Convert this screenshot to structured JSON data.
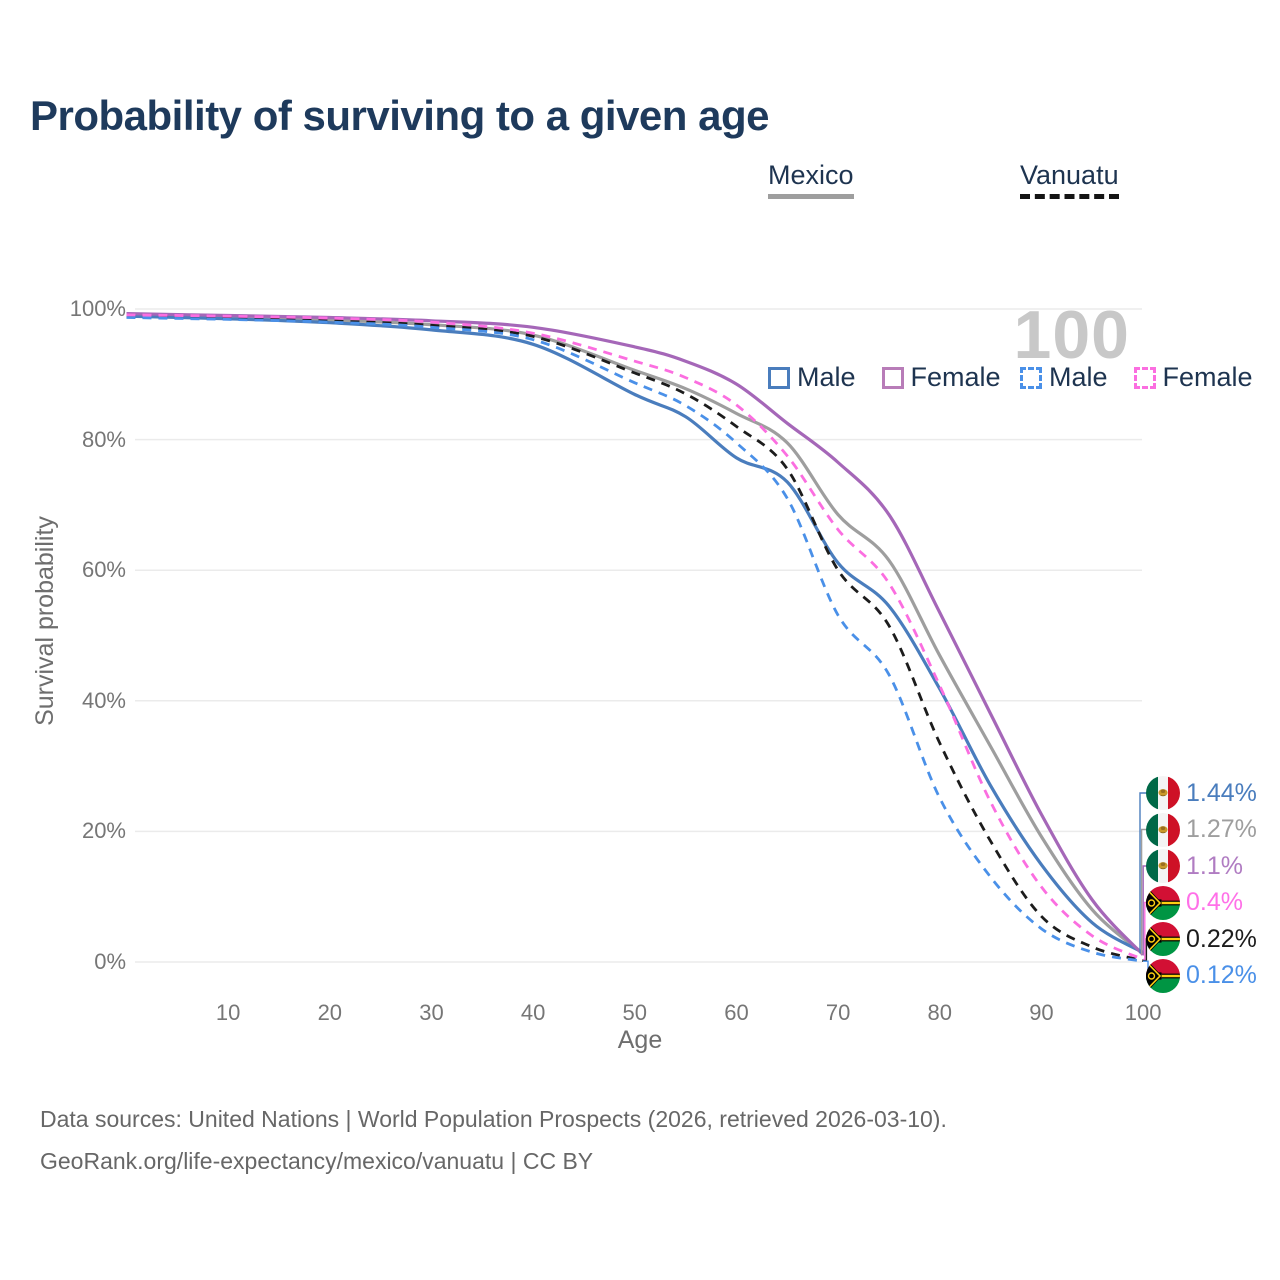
{
  "title": "Probability of surviving to a given age",
  "watermark": "100",
  "legend": {
    "groups": [
      {
        "name": "Mexico",
        "line_style": "solid",
        "underline_color": "#9e9e9e",
        "items": [
          {
            "label": "Male",
            "color": "#4a7dbd"
          },
          {
            "label": "Female",
            "color": "#b87cb8"
          }
        ]
      },
      {
        "name": "Vanuatu",
        "line_style": "dashed",
        "underline_color": "#141414",
        "items": [
          {
            "label": "Male",
            "color": "#4a90e8"
          },
          {
            "label": "Female",
            "color": "#fb6ee0"
          }
        ]
      }
    ]
  },
  "chart_data": {
    "type": "line",
    "title": "Probability of surviving to a given age",
    "xlabel": "Age",
    "ylabel": "Survival probability",
    "xlim": [
      0,
      100
    ],
    "ylim": [
      0,
      100
    ],
    "grid": "horizontal-only",
    "x_ticks": [
      10,
      20,
      30,
      40,
      50,
      60,
      70,
      80,
      90,
      100
    ],
    "y_ticks": [
      0,
      20,
      40,
      60,
      80,
      100
    ],
    "y_tick_suffix": "%",
    "x": [
      0,
      10,
      20,
      30,
      40,
      50,
      55,
      60,
      65,
      70,
      75,
      80,
      85,
      90,
      95,
      100
    ],
    "series": [
      {
        "name": "Mexico Both sexes",
        "color": "#9e9e9e",
        "dash": "solid",
        "values": [
          99.1,
          98.8,
          98.3,
          97.6,
          96.0,
          90.6,
          87.8,
          84.0,
          79.5,
          68.5,
          61.5,
          46.9,
          33.0,
          19.2,
          8.0,
          1.27
        ]
      },
      {
        "name": "Mexico Male",
        "color": "#4a7dbd",
        "dash": "solid",
        "values": [
          98.9,
          98.5,
          97.9,
          96.8,
          94.6,
          86.9,
          83.5,
          77.2,
          73.5,
          61.1,
          54.5,
          41.8,
          27.0,
          14.9,
          6.0,
          1.44
        ]
      },
      {
        "name": "Mexico Female",
        "color": "#a567b8",
        "dash": "solid",
        "values": [
          99.3,
          99.0,
          98.7,
          98.2,
          97.2,
          94.2,
          92.0,
          88.5,
          82.5,
          76.5,
          68.5,
          53.5,
          38.0,
          22.6,
          9.5,
          1.1
        ]
      },
      {
        "name": "Vanuatu Both sexes",
        "color": "#1c1c1c",
        "dash": "dashed",
        "values": [
          98.9,
          98.6,
          98.2,
          97.5,
          95.8,
          90.2,
          87.0,
          82.0,
          75.5,
          60.0,
          51.5,
          33.5,
          18.5,
          7.0,
          2.3,
          0.22
        ]
      },
      {
        "name": "Vanuatu Male",
        "color": "#4a90e8",
        "dash": "dashed",
        "values": [
          98.7,
          98.4,
          98.0,
          97.2,
          95.3,
          88.7,
          85.2,
          79.5,
          71.0,
          53.1,
          44.0,
          25.1,
          13.0,
          5.1,
          1.5,
          0.12
        ]
      },
      {
        "name": "Vanuatu Female",
        "color": "#fb6ee0",
        "dash": "dashed",
        "values": [
          99.1,
          98.9,
          98.6,
          98.0,
          96.3,
          92.0,
          89.5,
          85.3,
          77.5,
          66.2,
          58.0,
          42.3,
          24.5,
          11.5,
          4.0,
          0.4
        ]
      }
    ],
    "end_labels": [
      {
        "value": "1.44%",
        "color": "#4a7dbd",
        "flag": "mexico",
        "series": "Mexico Male"
      },
      {
        "value": "1.27%",
        "color": "#9e9e9e",
        "flag": "mexico",
        "series": "Mexico Both sexes"
      },
      {
        "value": "1.1%",
        "color": "#b07cc2",
        "flag": "mexico",
        "series": "Mexico Female"
      },
      {
        "value": "0.4%",
        "color": "#ff70e8",
        "flag": "vanuatu",
        "series": "Vanuatu Female"
      },
      {
        "value": "0.22%",
        "color": "#1c1c1c",
        "flag": "vanuatu",
        "series": "Vanuatu Both sexes"
      },
      {
        "value": "0.12%",
        "color": "#4a90e8",
        "flag": "vanuatu",
        "series": "Vanuatu Male"
      }
    ]
  },
  "footer": {
    "line1": "Data sources: United Nations | World Population Prospects (2026, retrieved 2026-03-10).",
    "line2": "GeoRank.org/life-expectancy/mexico/vanuatu | CC BY"
  }
}
